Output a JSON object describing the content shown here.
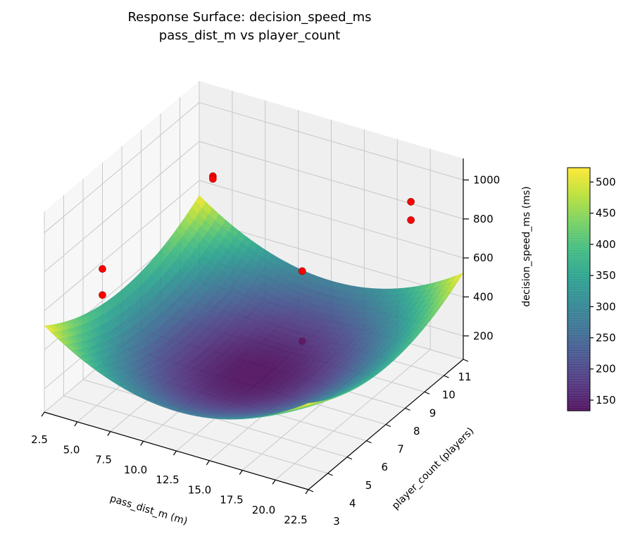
{
  "chart_data": {
    "type": "surface3d",
    "title": "Response Surface: decision_speed_ms",
    "subtitle": "pass_dist_m vs player_count",
    "xlabel": "pass_dist_m (m)",
    "ylabel": "player_count (players)",
    "zlabel": "decision_speed_ms (ms)",
    "xlim": [
      2.5,
      22.5
    ],
    "ylim": [
      3,
      11
    ],
    "zlim": [
      80,
      1110
    ],
    "xticks": [
      "2.5",
      "5.0",
      "7.5",
      "10.0",
      "12.5",
      "15.0",
      "17.5",
      "20.0",
      "22.5"
    ],
    "yticks": [
      "3",
      "4",
      "5",
      "6",
      "7",
      "8",
      "9",
      "10",
      "11"
    ],
    "zticks": [
      "200",
      "400",
      "600",
      "800",
      "1000"
    ],
    "surface": {
      "model": "z = 133 + 2.4*(x-12.5)^2 + 9.4*(y-7)^2",
      "min": 133,
      "max": 523,
      "colormap": "viridis"
    },
    "points": [
      {
        "x": 2.5,
        "y": 6,
        "z": 564
      },
      {
        "x": 2.5,
        "y": 6,
        "z": 430
      },
      {
        "x": 5,
        "y": 10,
        "z": 755
      },
      {
        "x": 5,
        "y": 10,
        "z": 741
      },
      {
        "x": 12.5,
        "y": 9.5,
        "z": 459
      },
      {
        "x": 12.5,
        "y": 9.5,
        "z": 100
      },
      {
        "x": 20,
        "y": 10,
        "z": 922
      },
      {
        "x": 20,
        "y": 10,
        "z": 828
      }
    ],
    "point_color": "#ff0000",
    "grid": true,
    "colorbar": {
      "range": [
        133,
        523
      ],
      "ticks": [
        "150",
        "200",
        "250",
        "300",
        "350",
        "400",
        "450",
        "500"
      ],
      "placement": "right"
    }
  }
}
